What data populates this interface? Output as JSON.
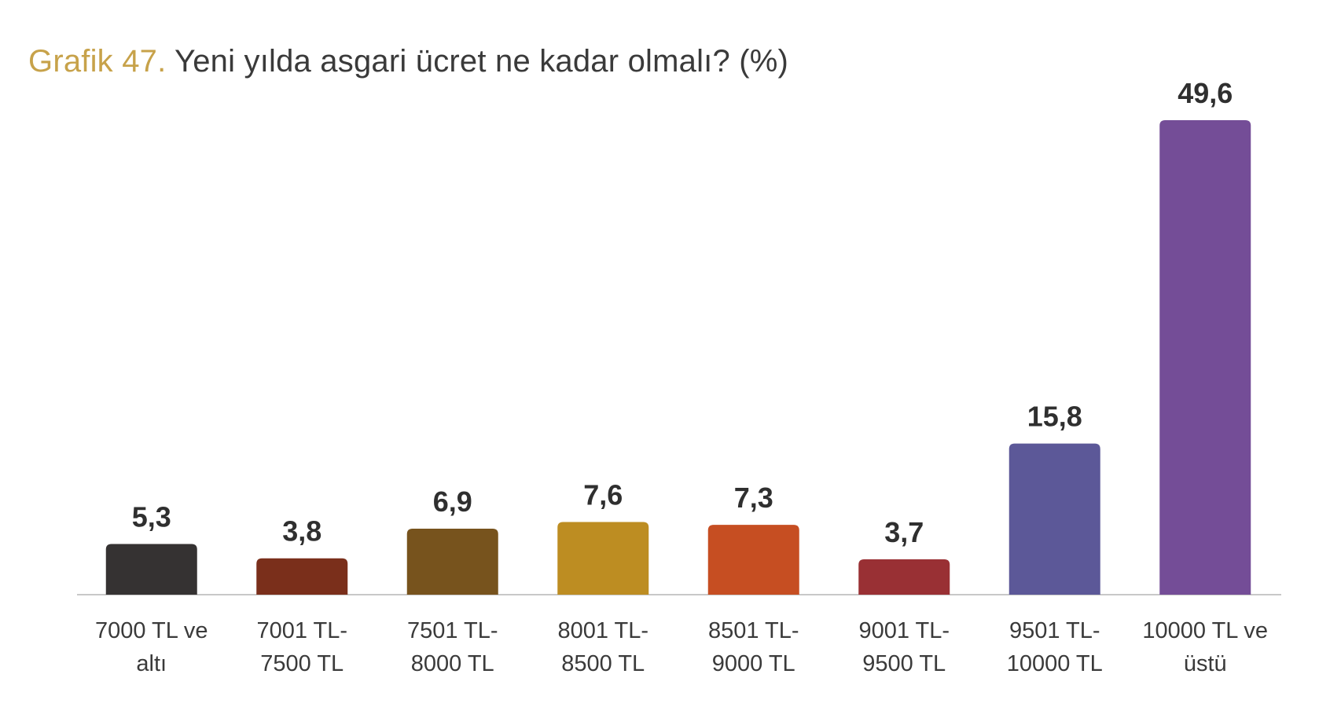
{
  "title": {
    "prefix": "Grafik 47.",
    "text": "Yeni yılda asgari ücret ne kadar olmalı? (%)"
  },
  "chart_data": {
    "type": "bar",
    "categories": [
      [
        "7000 TL ve",
        "altı"
      ],
      [
        "7001 TL-",
        "7500 TL"
      ],
      [
        "7501 TL-",
        "8000 TL"
      ],
      [
        "8001 TL-",
        "8500 TL"
      ],
      [
        "8501 TL-",
        "9000 TL"
      ],
      [
        "9001 TL-",
        "9500 TL"
      ],
      [
        "9501 TL-",
        "10000 TL"
      ],
      [
        "10000 TL ve",
        "üstü"
      ]
    ],
    "values": [
      5.3,
      3.8,
      6.9,
      7.6,
      7.3,
      3.7,
      15.8,
      49.6
    ],
    "value_labels": [
      "5,3",
      "3,8",
      "6,9",
      "7,6",
      "7,3",
      "3,7",
      "15,8",
      "49,6"
    ],
    "colors": [
      "#353232",
      "#7a2f1b",
      "#77531d",
      "#bd8d22",
      "#c64e22",
      "#993034",
      "#5c5898",
      "#744d97"
    ],
    "ylim": [
      0,
      49.6
    ],
    "grid": false,
    "legend": "none"
  }
}
